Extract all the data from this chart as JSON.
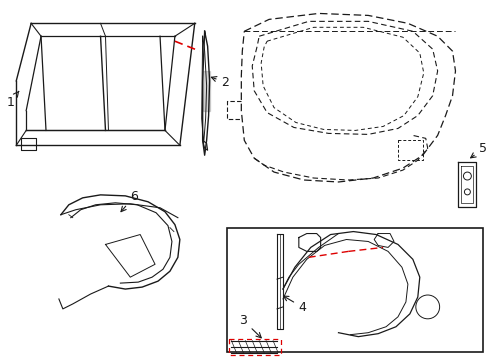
{
  "bg_color": "#ffffff",
  "line_color": "#1a1a1a",
  "red_color": "#dd0000",
  "gray_color": "#888888",
  "figsize": [
    4.89,
    3.6
  ],
  "dpi": 100,
  "label_fontsize": 9
}
